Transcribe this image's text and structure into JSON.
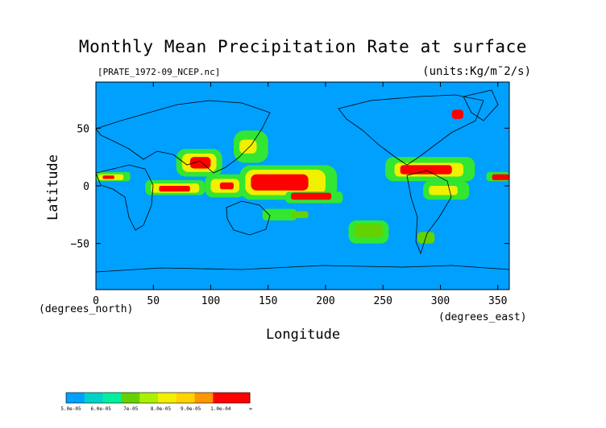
{
  "chart_data": {
    "type": "heatmap",
    "title": "Monthly Mean Precipitation Rate at surface",
    "subtitle_left": "[PRATE_1972-09_NCEP.nc]",
    "units": "(units:Kg/m¯2/s)",
    "xlabel": "Longitude",
    "ylabel": "Latitude",
    "x_units": "(degrees_north)",
    "x_units_right": "(degrees_east)",
    "xlim": [
      0,
      360
    ],
    "ylim": [
      -90,
      90
    ],
    "x_ticks": [
      "0",
      "50",
      "100",
      "150",
      "200",
      "250",
      "300",
      "350"
    ],
    "x_tick_values": [
      0,
      50,
      100,
      150,
      200,
      250,
      300,
      350
    ],
    "y_ticks": [
      "50",
      "0",
      "−50"
    ],
    "y_tick_values": [
      50,
      0,
      -50
    ],
    "background_level_color": "#00a0ff",
    "colorbar": {
      "labels": [
        "5.0e-05",
        "6.0e-05",
        "7e-05",
        "8.0e-05",
        "9.0e-05",
        "1.0e-04",
        "∞"
      ],
      "colors": [
        "#00a0ff",
        "#00d2c8",
        "#00f0a0",
        "#64d200",
        "#aaf000",
        "#f0f000",
        "#ffd200",
        "#ff9600",
        "#ff0000",
        "#ff0000"
      ]
    },
    "regions": [
      {
        "level": 1,
        "lon": [
          0,
          30
        ],
        "lat": [
          4,
          12
        ]
      },
      {
        "level": 3,
        "lon": [
          2,
          24
        ],
        "lat": [
          5,
          10
        ]
      },
      {
        "level": 4,
        "lon": [
          6,
          16
        ],
        "lat": [
          6,
          9
        ]
      },
      {
        "level": 1,
        "lon": [
          43,
          95
        ],
        "lat": [
          -8,
          5
        ]
      },
      {
        "level": 3,
        "lon": [
          48,
          90
        ],
        "lat": [
          -6,
          2
        ]
      },
      {
        "level": 4,
        "lon": [
          55,
          82
        ],
        "lat": [
          -5,
          0
        ]
      },
      {
        "level": 1,
        "lon": [
          70,
          110
        ],
        "lat": [
          8,
          32
        ]
      },
      {
        "level": 3,
        "lon": [
          75,
          105
        ],
        "lat": [
          12,
          28
        ]
      },
      {
        "level": 4,
        "lon": [
          82,
          100
        ],
        "lat": [
          15,
          25
        ]
      },
      {
        "level": 1,
        "lon": [
          95,
          130
        ],
        "lat": [
          -10,
          10
        ]
      },
      {
        "level": 3,
        "lon": [
          100,
          125
        ],
        "lat": [
          -6,
          6
        ]
      },
      {
        "level": 4,
        "lon": [
          108,
          120
        ],
        "lat": [
          -3,
          3
        ]
      },
      {
        "level": 1,
        "lon": [
          120,
          150
        ],
        "lat": [
          20,
          48
        ]
      },
      {
        "level": 3,
        "lon": [
          125,
          140
        ],
        "lat": [
          28,
          40
        ]
      },
      {
        "level": 1,
        "lon": [
          125,
          210
        ],
        "lat": [
          -12,
          18
        ]
      },
      {
        "level": 3,
        "lon": [
          130,
          200
        ],
        "lat": [
          -8,
          14
        ]
      },
      {
        "level": 4,
        "lon": [
          135,
          185
        ],
        "lat": [
          -4,
          10
        ]
      },
      {
        "level": 1,
        "lon": [
          165,
          215
        ],
        "lat": [
          -15,
          -5
        ]
      },
      {
        "level": 4,
        "lon": [
          170,
          205
        ],
        "lat": [
          -12,
          -6
        ]
      },
      {
        "level": 1,
        "lon": [
          220,
          255
        ],
        "lat": [
          -50,
          -30
        ]
      },
      {
        "level": 2,
        "lon": [
          225,
          250
        ],
        "lat": [
          -45,
          -33
        ]
      },
      {
        "level": 1,
        "lon": [
          252,
          330
        ],
        "lat": [
          4,
          25
        ]
      },
      {
        "level": 3,
        "lon": [
          260,
          320
        ],
        "lat": [
          8,
          20
        ]
      },
      {
        "level": 4,
        "lon": [
          265,
          310
        ],
        "lat": [
          10,
          18
        ]
      },
      {
        "level": 1,
        "lon": [
          285,
          325
        ],
        "lat": [
          -12,
          4
        ]
      },
      {
        "level": 3,
        "lon": [
          290,
          315
        ],
        "lat": [
          -8,
          0
        ]
      },
      {
        "level": 1,
        "lon": [
          340,
          360
        ],
        "lat": [
          4,
          12
        ]
      },
      {
        "level": 4,
        "lon": [
          345,
          360
        ],
        "lat": [
          5,
          10
        ]
      },
      {
        "level": 2,
        "lon": [
          280,
          295
        ],
        "lat": [
          -50,
          -40
        ]
      },
      {
        "level": 4,
        "lon": [
          310,
          320
        ],
        "lat": [
          58,
          66
        ]
      },
      {
        "level": 1,
        "lon": [
          145,
          175
        ],
        "lat": [
          -30,
          -20
        ]
      },
      {
        "level": 2,
        "lon": [
          170,
          185
        ],
        "lat": [
          -28,
          -22
        ]
      }
    ]
  }
}
